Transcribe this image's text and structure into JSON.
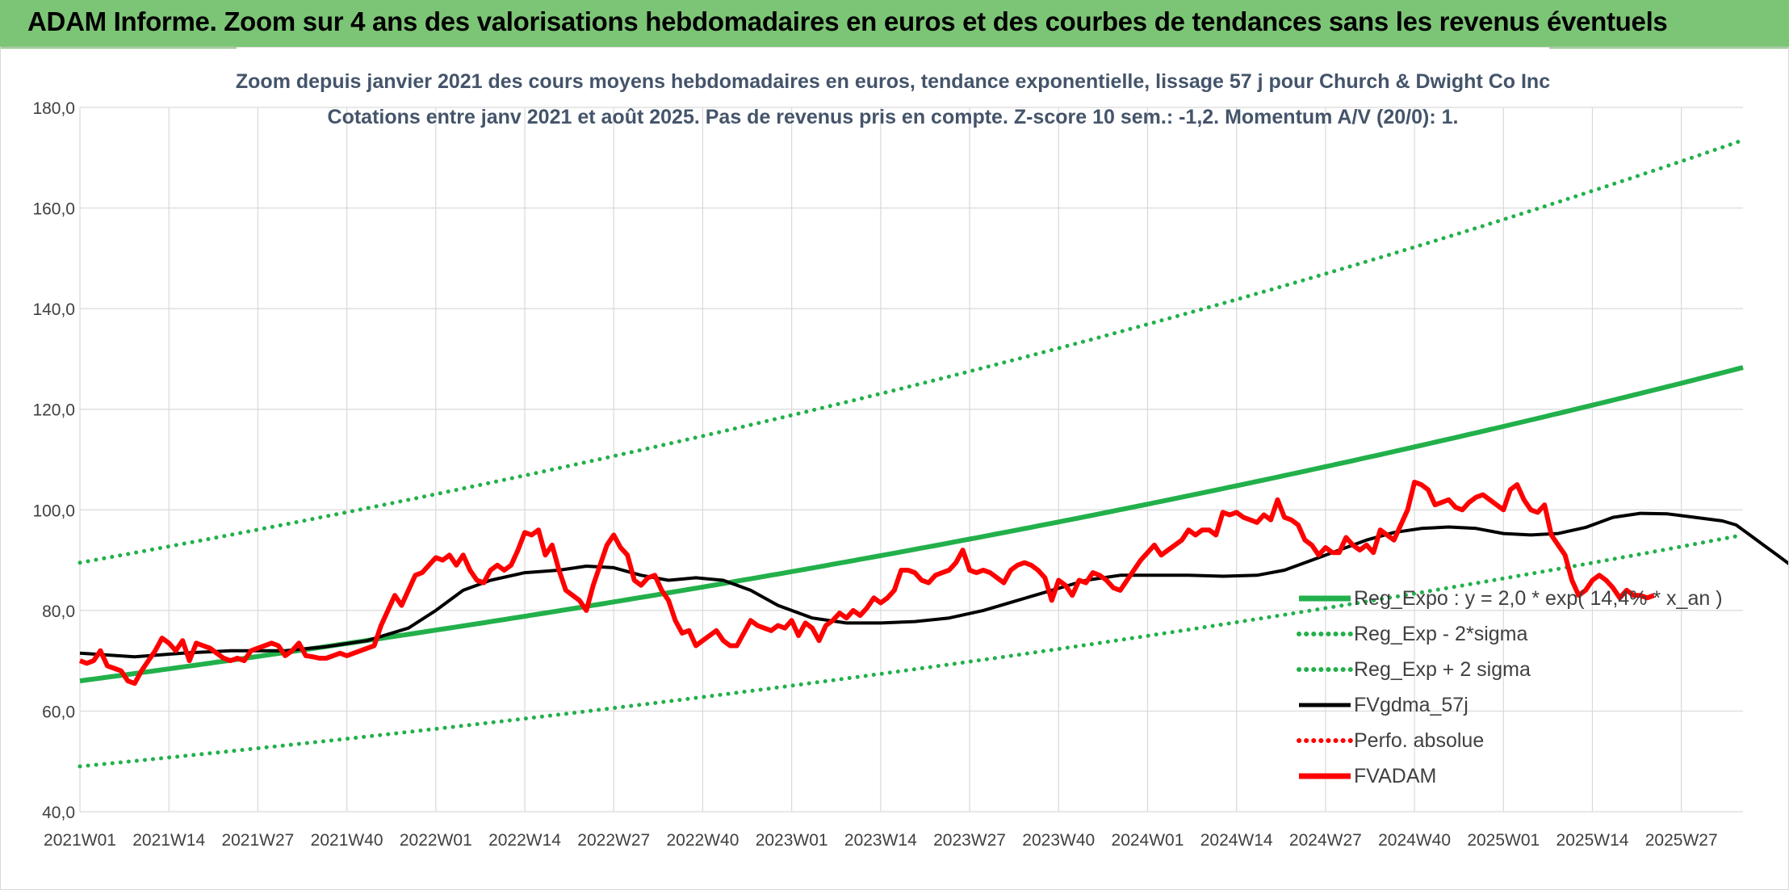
{
  "banner": {
    "title": "ADAM Informe. Zoom sur 4 ans des valorisations hebdomadaires en euros et des courbes de tendances sans les revenus éventuels"
  },
  "chart_data": {
    "type": "line",
    "title": "Zoom depuis janvier 2021 des cours moyens hebdomadaires en euros, tendance exponentielle, lissage 57 j pour Church & Dwight Co Inc",
    "subtitle": "Cotations entre janv 2021 et août 2025. Pas de revenus pris en compte. Z-score 10 sem.: -1,2. Momentum A/V (20/0): 1.",
    "y_ticks": [
      "40,0",
      "60,0",
      "80,0",
      "100,0",
      "120,0",
      "140,0",
      "160,0",
      "180,0"
    ],
    "ylim": [
      40,
      180
    ],
    "x_ticks": [
      "2021W01",
      "2021W14",
      "2021W27",
      "2021W40",
      "2022W01",
      "2022W14",
      "2022W27",
      "2022W40",
      "2023W01",
      "2023W14",
      "2023W27",
      "2023W40",
      "2024W01",
      "2024W14",
      "2024W27",
      "2024W40",
      "2025W01",
      "2025W14",
      "2025W27"
    ],
    "x_range_weeks": [
      0,
      243
    ],
    "grid": "vertical-and-horizontal",
    "legend_position": "right-bottom",
    "series": [
      {
        "name": "Reg_Expo : y = 2,0 * exp( 14,4% * x_an )",
        "color": "#22b04b",
        "style": "solid-thick",
        "points": [
          [
            0,
            66.0
          ],
          [
            243,
            128.3
          ]
        ]
      },
      {
        "name": "Reg_Exp - 2*sigma",
        "color": "#22b04b",
        "style": "dotted",
        "points": [
          [
            0,
            49.0
          ],
          [
            243,
            95.0
          ]
        ]
      },
      {
        "name": "Reg_Exp + 2 sigma",
        "color": "#22b04b",
        "style": "dotted",
        "points": [
          [
            0,
            89.5
          ],
          [
            243,
            173.5
          ]
        ]
      },
      {
        "name": "FVgdma_57j",
        "color": "#000000",
        "style": "solid",
        "points": [
          [
            0,
            71.5
          ],
          [
            8,
            70.8
          ],
          [
            15,
            71.5
          ],
          [
            22,
            72.0
          ],
          [
            30,
            72.0
          ],
          [
            36,
            72.8
          ],
          [
            42,
            74.0
          ],
          [
            48,
            76.5
          ],
          [
            52,
            80.0
          ],
          [
            56,
            84.0
          ],
          [
            60,
            86.0
          ],
          [
            65,
            87.5
          ],
          [
            70,
            88.0
          ],
          [
            74,
            88.8
          ],
          [
            78,
            88.5
          ],
          [
            82,
            87.0
          ],
          [
            86,
            86.0
          ],
          [
            90,
            86.5
          ],
          [
            94,
            86.0
          ],
          [
            98,
            84.0
          ],
          [
            102,
            81.0
          ],
          [
            107,
            78.5
          ],
          [
            112,
            77.5
          ],
          [
            117,
            77.5
          ],
          [
            122,
            77.8
          ],
          [
            127,
            78.5
          ],
          [
            132,
            80.0
          ],
          [
            137,
            82.0
          ],
          [
            142,
            84.0
          ],
          [
            147,
            86.0
          ],
          [
            152,
            87.0
          ],
          [
            157,
            87.0
          ],
          [
            162,
            87.0
          ],
          [
            167,
            86.8
          ],
          [
            172,
            87.0
          ],
          [
            176,
            88.0
          ],
          [
            180,
            90.0
          ],
          [
            184,
            92.0
          ],
          [
            188,
            94.0
          ],
          [
            192,
            95.5
          ],
          [
            196,
            96.3
          ],
          [
            200,
            96.6
          ],
          [
            204,
            96.3
          ],
          [
            208,
            95.3
          ],
          [
            212,
            95.0
          ],
          [
            216,
            95.3
          ],
          [
            220,
            96.5
          ],
          [
            224,
            98.5
          ],
          [
            228,
            99.3
          ],
          [
            232,
            99.2
          ],
          [
            236,
            98.5
          ],
          [
            240,
            97.8
          ],
          [
            242,
            97.0
          ],
          [
            244,
            95.0
          ],
          [
            246,
            93.0
          ],
          [
            248,
            91.0
          ],
          [
            250,
            89.0
          ],
          [
            252,
            87.8
          ],
          [
            254,
            86.8
          ],
          [
            256,
            86.0
          ],
          [
            258,
            85.3
          ],
          [
            260,
            84.8
          ]
        ]
      },
      {
        "name": "Perfo. absolue",
        "color": "#ff0000",
        "style": "dotted",
        "points": []
      },
      {
        "name": "FVADAM",
        "color": "#ff0000",
        "style": "solid-thick",
        "points": [
          [
            0,
            70.0
          ],
          [
            1,
            69.5
          ],
          [
            2,
            70.0
          ],
          [
            3,
            72.0
          ],
          [
            4,
            69.0
          ],
          [
            5,
            68.5
          ],
          [
            6,
            68.0
          ],
          [
            7,
            66.0
          ],
          [
            8,
            65.5
          ],
          [
            9,
            68.0
          ],
          [
            10,
            70.0
          ],
          [
            11,
            72.0
          ],
          [
            12,
            74.5
          ],
          [
            13,
            73.5
          ],
          [
            14,
            72.0
          ],
          [
            15,
            74.0
          ],
          [
            16,
            70.0
          ],
          [
            17,
            73.5
          ],
          [
            18,
            73.0
          ],
          [
            19,
            72.5
          ],
          [
            20,
            71.5
          ],
          [
            21,
            70.5
          ],
          [
            22,
            70.0
          ],
          [
            23,
            70.5
          ],
          [
            24,
            70.0
          ],
          [
            25,
            72.0
          ],
          [
            26,
            72.5
          ],
          [
            27,
            73.0
          ],
          [
            28,
            73.5
          ],
          [
            29,
            73.0
          ],
          [
            30,
            71.0
          ],
          [
            31,
            72.0
          ],
          [
            32,
            73.5
          ],
          [
            33,
            71.0
          ],
          [
            34,
            70.8
          ],
          [
            35,
            70.5
          ],
          [
            36,
            70.5
          ],
          [
            37,
            71.0
          ],
          [
            38,
            71.5
          ],
          [
            39,
            71.0
          ],
          [
            40,
            71.5
          ],
          [
            41,
            72.0
          ],
          [
            42,
            72.5
          ],
          [
            43,
            73.0
          ],
          [
            44,
            77.0
          ],
          [
            45,
            80.0
          ],
          [
            46,
            83.0
          ],
          [
            47,
            81.0
          ],
          [
            48,
            84.0
          ],
          [
            49,
            87.0
          ],
          [
            50,
            87.5
          ],
          [
            51,
            89.0
          ],
          [
            52,
            90.5
          ],
          [
            53,
            90.0
          ],
          [
            54,
            91.0
          ],
          [
            55,
            89.0
          ],
          [
            56,
            91.0
          ],
          [
            57,
            88.0
          ],
          [
            58,
            86.0
          ],
          [
            59,
            85.5
          ],
          [
            60,
            88.0
          ],
          [
            61,
            89.0
          ],
          [
            62,
            88.0
          ],
          [
            63,
            89.0
          ],
          [
            64,
            92.0
          ],
          [
            65,
            95.5
          ],
          [
            66,
            95.0
          ],
          [
            67,
            96.0
          ],
          [
            68,
            91.0
          ],
          [
            69,
            93.0
          ],
          [
            70,
            88.0
          ],
          [
            71,
            84.0
          ],
          [
            72,
            83.0
          ],
          [
            73,
            82.0
          ],
          [
            74,
            80.0
          ],
          [
            75,
            85.0
          ],
          [
            76,
            89.0
          ],
          [
            77,
            93.0
          ],
          [
            78,
            95.0
          ],
          [
            79,
            92.5
          ],
          [
            80,
            91.0
          ],
          [
            81,
            86.0
          ],
          [
            82,
            85.0
          ],
          [
            83,
            86.5
          ],
          [
            84,
            87.0
          ],
          [
            85,
            84.0
          ],
          [
            86,
            82.0
          ],
          [
            87,
            78.0
          ],
          [
            88,
            75.5
          ],
          [
            89,
            76.0
          ],
          [
            90,
            73.0
          ],
          [
            91,
            74.0
          ],
          [
            92,
            75.0
          ],
          [
            93,
            76.0
          ],
          [
            94,
            74.0
          ],
          [
            95,
            73.0
          ],
          [
            96,
            73.0
          ],
          [
            97,
            75.5
          ],
          [
            98,
            78.0
          ],
          [
            99,
            77.0
          ],
          [
            100,
            76.5
          ],
          [
            101,
            76.0
          ],
          [
            102,
            77.0
          ],
          [
            103,
            76.5
          ],
          [
            104,
            78.0
          ],
          [
            105,
            75.0
          ],
          [
            106,
            77.5
          ],
          [
            107,
            76.5
          ],
          [
            108,
            74.0
          ],
          [
            109,
            77.0
          ],
          [
            110,
            78.0
          ],
          [
            111,
            79.5
          ],
          [
            112,
            78.5
          ],
          [
            113,
            80.0
          ],
          [
            114,
            79.0
          ],
          [
            115,
            80.5
          ],
          [
            116,
            82.5
          ],
          [
            117,
            81.5
          ],
          [
            118,
            82.5
          ],
          [
            119,
            84.0
          ],
          [
            120,
            88.0
          ],
          [
            121,
            88.0
          ],
          [
            122,
            87.5
          ],
          [
            123,
            86.0
          ],
          [
            124,
            85.5
          ],
          [
            125,
            87.0
          ],
          [
            126,
            87.5
          ],
          [
            127,
            88.0
          ],
          [
            128,
            89.5
          ],
          [
            129,
            92.0
          ],
          [
            130,
            88.0
          ],
          [
            131,
            87.5
          ],
          [
            132,
            88.0
          ],
          [
            133,
            87.5
          ],
          [
            134,
            86.5
          ],
          [
            135,
            85.5
          ],
          [
            136,
            88.0
          ],
          [
            137,
            89.0
          ],
          [
            138,
            89.5
          ],
          [
            139,
            89.0
          ],
          [
            140,
            88.0
          ],
          [
            141,
            86.5
          ],
          [
            142,
            82.0
          ],
          [
            143,
            86.0
          ],
          [
            144,
            85.0
          ],
          [
            145,
            83.0
          ],
          [
            146,
            86.0
          ],
          [
            147,
            85.5
          ],
          [
            148,
            87.5
          ],
          [
            149,
            87.0
          ],
          [
            150,
            86.0
          ],
          [
            151,
            84.5
          ],
          [
            152,
            84.0
          ],
          [
            153,
            86.0
          ],
          [
            154,
            88.0
          ],
          [
            155,
            90.0
          ],
          [
            156,
            91.5
          ],
          [
            157,
            93.0
          ],
          [
            158,
            91.0
          ],
          [
            159,
            92.0
          ],
          [
            160,
            93.0
          ],
          [
            161,
            94.0
          ],
          [
            162,
            96.0
          ],
          [
            163,
            95.0
          ],
          [
            164,
            96.0
          ],
          [
            165,
            96.0
          ],
          [
            166,
            95.0
          ],
          [
            167,
            99.5
          ],
          [
            168,
            99.0
          ],
          [
            169,
            99.5
          ],
          [
            170,
            98.5
          ],
          [
            171,
            98.0
          ],
          [
            172,
            97.5
          ],
          [
            173,
            99.0
          ],
          [
            174,
            98.0
          ],
          [
            175,
            102.0
          ],
          [
            176,
            98.5
          ],
          [
            177,
            98.0
          ],
          [
            178,
            97.0
          ],
          [
            179,
            94.0
          ],
          [
            180,
            93.0
          ],
          [
            181,
            91.0
          ],
          [
            182,
            92.5
          ],
          [
            183,
            91.5
          ],
          [
            184,
            91.5
          ],
          [
            185,
            94.5
          ],
          [
            186,
            93.0
          ],
          [
            187,
            92.0
          ],
          [
            188,
            93.0
          ],
          [
            189,
            91.5
          ],
          [
            190,
            96.0
          ],
          [
            191,
            95.0
          ],
          [
            192,
            94.0
          ],
          [
            193,
            97.0
          ],
          [
            194,
            100.0
          ],
          [
            195,
            105.5
          ],
          [
            196,
            105.0
          ],
          [
            197,
            104.0
          ],
          [
            198,
            101.0
          ],
          [
            199,
            101.5
          ],
          [
            200,
            102.0
          ],
          [
            201,
            100.5
          ],
          [
            202,
            100.0
          ],
          [
            203,
            101.5
          ],
          [
            204,
            102.5
          ],
          [
            205,
            103.0
          ],
          [
            206,
            102.0
          ],
          [
            207,
            101.0
          ],
          [
            208,
            100.0
          ],
          [
            209,
            104.0
          ],
          [
            210,
            105.0
          ],
          [
            211,
            102.0
          ],
          [
            212,
            100.0
          ],
          [
            213,
            99.5
          ],
          [
            214,
            101.0
          ],
          [
            215,
            95.0
          ],
          [
            216,
            93.0
          ],
          [
            217,
            91.0
          ],
          [
            218,
            86.0
          ],
          [
            219,
            83.0
          ],
          [
            220,
            84.0
          ],
          [
            221,
            86.0
          ],
          [
            222,
            87.0
          ],
          [
            223,
            86.0
          ],
          [
            224,
            84.5
          ],
          [
            225,
            82.5
          ],
          [
            226,
            84.0
          ],
          [
            227,
            83.0
          ],
          [
            228,
            83.0
          ],
          [
            229,
            82.5
          ],
          [
            230,
            83.0
          ]
        ]
      }
    ]
  }
}
